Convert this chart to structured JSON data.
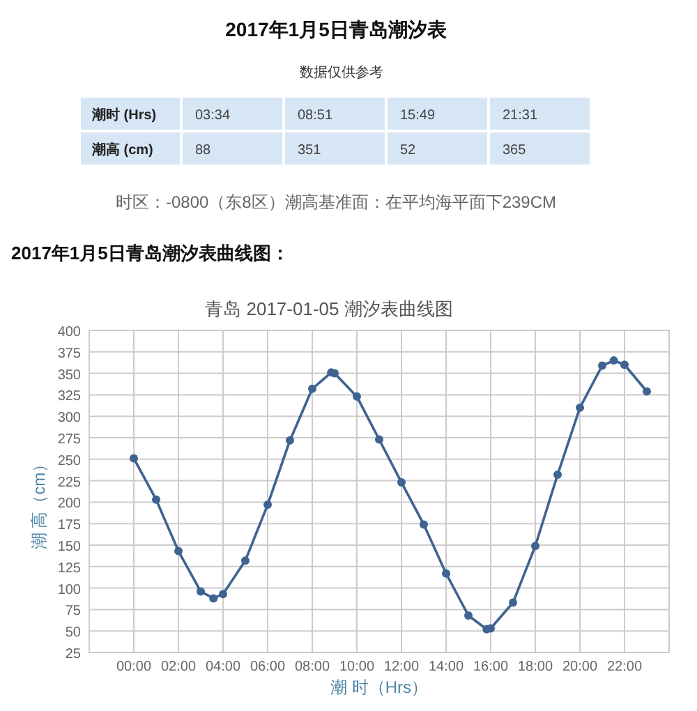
{
  "chart_data": [
    {
      "type": "other",
      "title": "2017年1月5日青岛潮汐表",
      "subtitle": "数据仅供参考",
      "xlabel": "潮时 (Hrs)",
      "ylabel": "潮高 (cm)",
      "categories": [
        "03:34",
        "08:51",
        "15:49",
        "21:31"
      ],
      "values": [
        88,
        351,
        52,
        365
      ],
      "data_labels": true,
      "annotations": [
        "时区：-0800（东8区）潮高基准面：在平均海平面下239CM",
        "2017年1月5日青岛潮汐表曲线图："
      ]
    },
    {
      "type": "line",
      "title": "青岛 2017-01-05 潮汐表曲线图",
      "xlabel": "潮 时（Hrs）",
      "ylabel": "潮 高（cm）",
      "x": [
        0,
        1,
        2,
        3,
        3.57,
        4,
        5,
        6,
        7,
        8,
        8.85,
        9,
        10,
        11,
        12,
        13,
        14,
        15,
        15.82,
        16,
        17,
        18,
        19,
        20,
        21,
        21.52,
        22,
        23
      ],
      "values": [
        251,
        203,
        143,
        96,
        88,
        93,
        132,
        197,
        272,
        332,
        351,
        350,
        323,
        273,
        223,
        174,
        117,
        68,
        52,
        53,
        83,
        149,
        232,
        310,
        359,
        365,
        360,
        329
      ],
      "color": "#3f6391",
      "marker": "circle",
      "xlim": [
        -2,
        24
      ],
      "xticks": [
        {
          "value": 0,
          "label": "00:00"
        },
        {
          "value": 2,
          "label": "02:00"
        },
        {
          "value": 4,
          "label": "04:00"
        },
        {
          "value": 6,
          "label": "06:00"
        },
        {
          "value": 8,
          "label": "08:00"
        },
        {
          "value": 10,
          "label": "10:00"
        },
        {
          "value": 12,
          "label": "12:00"
        },
        {
          "value": 14,
          "label": "14:00"
        },
        {
          "value": 16,
          "label": "16:00"
        },
        {
          "value": 18,
          "label": "18:00"
        },
        {
          "value": 20,
          "label": "20:00"
        },
        {
          "value": 22,
          "label": "22:00"
        }
      ],
      "ylim": [
        25,
        400
      ],
      "yticks": [
        25,
        50,
        75,
        100,
        125,
        150,
        175,
        200,
        225,
        250,
        275,
        300,
        325,
        350,
        375,
        400
      ],
      "grid": true
    }
  ]
}
